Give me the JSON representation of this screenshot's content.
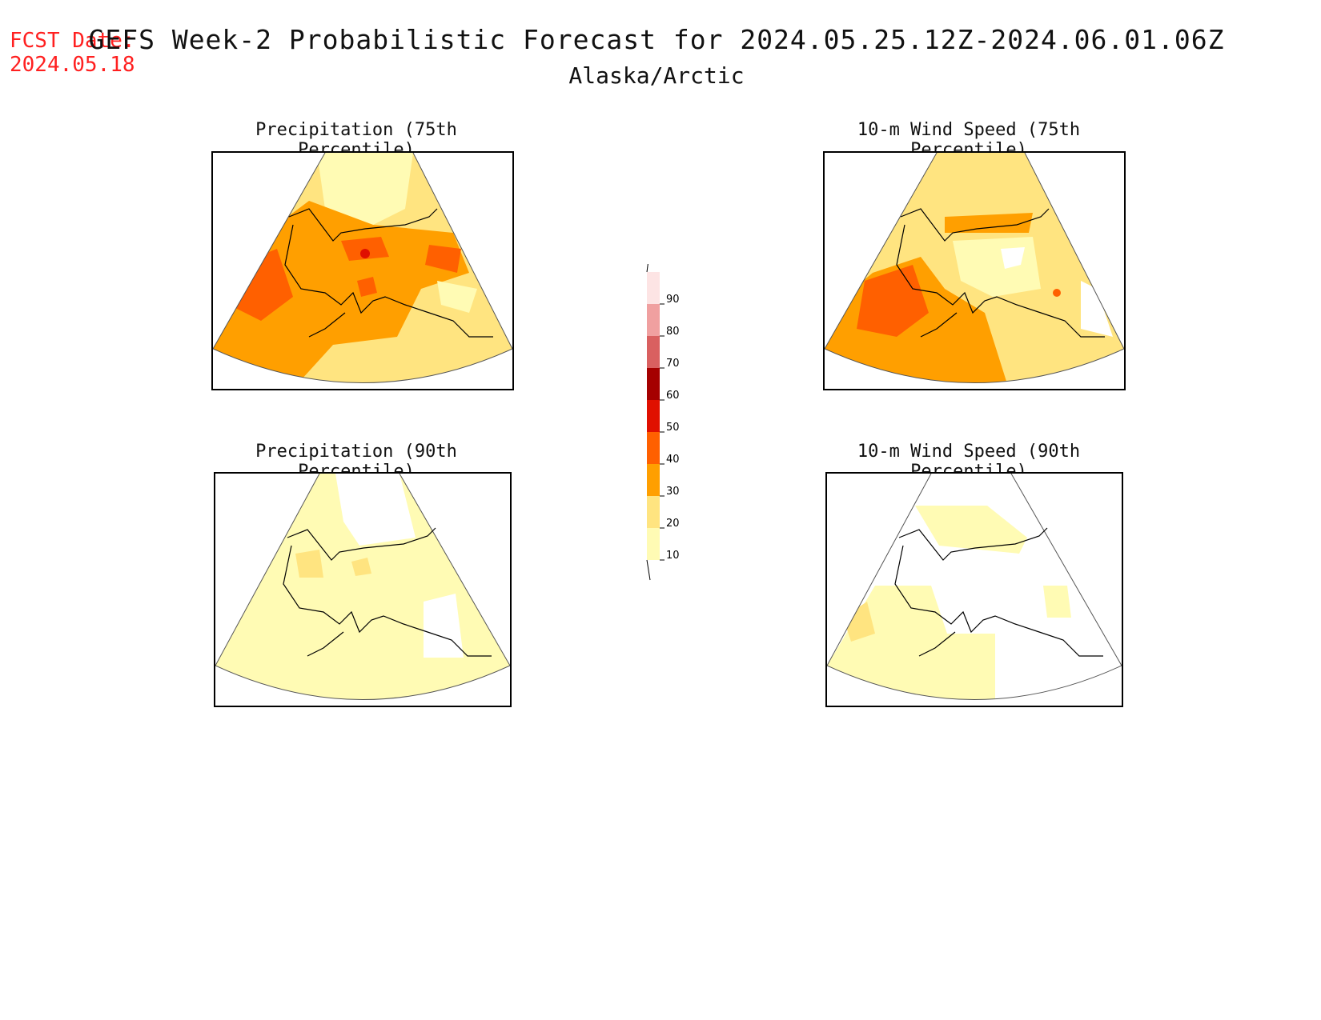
{
  "header": {
    "fcst_label": "FCST Date:",
    "fcst_date": "2024.05.18",
    "title": "GEFS Week-2 Probabilistic Forecast for 2024.05.25.12Z-2024.06.01.06Z",
    "region": "Alaska/Arctic"
  },
  "panels": [
    {
      "title": "Precipitation (75th Percentile)"
    },
    {
      "title": "10-m Wind Speed (75th Percentile)"
    },
    {
      "title": "Precipitation (90th Percentile)"
    },
    {
      "title": "10-m Wind Speed (90th Percentile)"
    }
  ],
  "colorbar": {
    "levels": [
      "10",
      "20",
      "30",
      "40",
      "50",
      "60",
      "70",
      "80",
      "90"
    ],
    "colors": [
      "#fffbb4",
      "#ffe480",
      "#ff9f00",
      "#ff6000",
      "#e01000",
      "#a50000",
      "#d96060",
      "#f0a0a0",
      "#fde4e4"
    ]
  }
}
